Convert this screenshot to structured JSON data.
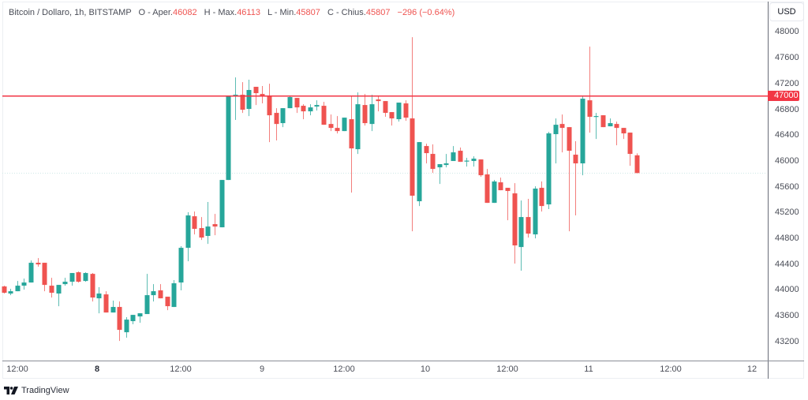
{
  "legend": {
    "symbol": "Bitcoin / Dollaro, 1h, BITSTAMP",
    "open_label": "O - Aper.",
    "open": "46082",
    "high_label": "H - Max.",
    "high": "46113",
    "low_label": "L - Min.",
    "low": "45807",
    "close_label": "C - Chius.",
    "close": "45807",
    "change": "−296 (−0.64%)"
  },
  "price_axis": {
    "currency_button": "USD",
    "ticks": [
      "48000",
      "47600",
      "47200",
      "46800",
      "46400",
      "46000",
      "45600",
      "45200",
      "44800",
      "44400",
      "44000",
      "43600",
      "43200"
    ],
    "marker_label": "47000"
  },
  "time_axis": {
    "ticks": [
      "12:00",
      "8",
      "12:00",
      "9",
      "12:00",
      "10",
      "12:00",
      "11",
      "12:00",
      "12"
    ]
  },
  "branding": {
    "name": "TradingView"
  },
  "colors": {
    "up": "#26a69a",
    "down": "#ef5350",
    "level_line": "#f23645",
    "last_price_line": "#cfe9e6"
  },
  "chart_data": {
    "type": "candlestick",
    "title": "Bitcoin / Dollaro, 1h, BITSTAMP",
    "xlabel": "",
    "ylabel": "USD",
    "interval": "1h",
    "x_tick_labels": [
      "12:00",
      "8",
      "12:00",
      "9",
      "12:00",
      "10",
      "12:00",
      "11",
      "12:00",
      "12"
    ],
    "y_ticks": [
      48000,
      47600,
      47200,
      46800,
      46400,
      46000,
      45600,
      45200,
      44800,
      44400,
      44000,
      43600,
      43200
    ],
    "ylim": [
      42900,
      48490
    ],
    "grid": false,
    "horizontal_line": {
      "price": 47000,
      "label": "47000"
    },
    "last_price": 45807,
    "fields": [
      "open",
      "high",
      "low",
      "close"
    ],
    "candles": [
      [
        44049,
        44061,
        43939,
        43951
      ],
      [
        43939,
        44012,
        43914,
        43975
      ],
      [
        43975,
        44134,
        43975,
        44061
      ],
      [
        44061,
        44171,
        44000,
        44110
      ],
      [
        44110,
        44452,
        44110,
        44416
      ],
      [
        44416,
        44489,
        44355,
        44391
      ],
      [
        44416,
        44416,
        43975,
        44073
      ],
      [
        44061,
        44183,
        43877,
        43951
      ],
      [
        43939,
        44073,
        43743,
        44073
      ],
      [
        44085,
        44183,
        44061,
        44122
      ],
      [
        44122,
        44257,
        44061,
        44257
      ],
      [
        44269,
        44281,
        44110,
        44122
      ],
      [
        44134,
        44269,
        44122,
        44257
      ],
      [
        44244,
        44257,
        43816,
        43877
      ],
      [
        43865,
        44037,
        43633,
        43939
      ],
      [
        43926,
        43975,
        43645,
        43645
      ],
      [
        43645,
        43829,
        43645,
        43731
      ],
      [
        43731,
        43816,
        43205,
        43376
      ],
      [
        43339,
        43572,
        43254,
        43535
      ],
      [
        43511,
        43608,
        43462,
        43608
      ],
      [
        43584,
        43633,
        43486,
        43633
      ],
      [
        43621,
        44244,
        43621,
        43914
      ],
      [
        43914,
        44085,
        43816,
        43975
      ],
      [
        43988,
        44085,
        43865,
        43865
      ],
      [
        43890,
        43890,
        43682,
        43743
      ],
      [
        43731,
        44147,
        43731,
        44098
      ],
      [
        44110,
        44673,
        43988,
        44648
      ],
      [
        44648,
        45199,
        44440,
        45150
      ],
      [
        45137,
        45211,
        44856,
        44942
      ],
      [
        44954,
        45125,
        44770,
        44807
      ],
      [
        44832,
        45358,
        44709,
        44978
      ],
      [
        45015,
        45174,
        44844,
        44978
      ],
      [
        44966,
        45700,
        44966,
        45700
      ],
      [
        45700,
        47009,
        45700,
        47009
      ],
      [
        47009,
        47290,
        46630,
        47021
      ],
      [
        47021,
        47217,
        46740,
        46789
      ],
      [
        46801,
        47254,
        46691,
        47095
      ],
      [
        47144,
        47144,
        46862,
        47046
      ],
      [
        47033,
        47156,
        46887,
        46997
      ],
      [
        46997,
        47192,
        46287,
        46703
      ],
      [
        46740,
        46813,
        46312,
        46568
      ],
      [
        46581,
        46813,
        46519,
        46813
      ],
      [
        46813,
        46997,
        46813,
        46985
      ],
      [
        46972,
        46972,
        46740,
        46825
      ],
      [
        46850,
        46874,
        46642,
        46764
      ],
      [
        46764,
        46874,
        46703,
        46825
      ],
      [
        46838,
        46935,
        46776,
        46862
      ],
      [
        46850,
        46911,
        46556,
        46556
      ],
      [
        46568,
        46715,
        46458,
        46507
      ],
      [
        46507,
        46691,
        46422,
        46458
      ],
      [
        46458,
        46666,
        46458,
        46666
      ],
      [
        46642,
        47009,
        45504,
        46189
      ],
      [
        46177,
        47058,
        46104,
        46874
      ],
      [
        46862,
        47033,
        46544,
        46581
      ],
      [
        46568,
        47021,
        46458,
        46874
      ],
      [
        46948,
        47009,
        46764,
        46923
      ],
      [
        46923,
        46923,
        46679,
        46740
      ],
      [
        46752,
        46752,
        46544,
        46654
      ],
      [
        46642,
        46899,
        46605,
        46899
      ],
      [
        46887,
        46935,
        46617,
        46666
      ],
      [
        46654,
        47914,
        44905,
        45456
      ],
      [
        45370,
        46287,
        45296,
        46287
      ],
      [
        46226,
        46263,
        45957,
        46116
      ],
      [
        46104,
        46251,
        45810,
        45871
      ],
      [
        45896,
        45945,
        45639,
        45945
      ],
      [
        45932,
        46104,
        45896,
        45957
      ],
      [
        45994,
        46226,
        45994,
        46128
      ],
      [
        46153,
        46202,
        45981,
        45981
      ],
      [
        45994,
        46043,
        45908,
        46000
      ],
      [
        45994,
        46067,
        45908,
        46030
      ],
      [
        46018,
        46018,
        45749,
        45773
      ],
      [
        45786,
        45871,
        45345,
        45345
      ],
      [
        45345,
        45700,
        45345,
        45676
      ],
      [
        45663,
        45737,
        45541,
        45541
      ],
      [
        45578,
        45578,
        45076,
        45529
      ],
      [
        45492,
        45651,
        44403,
        44685
      ],
      [
        44660,
        45382,
        44293,
        45125
      ],
      [
        45125,
        45407,
        44807,
        44868
      ],
      [
        44856,
        45602,
        44795,
        45566
      ],
      [
        45578,
        45676,
        45211,
        45296
      ],
      [
        45321,
        46446,
        45248,
        46422
      ],
      [
        46410,
        46654,
        45957,
        46556
      ],
      [
        46568,
        46715,
        46128,
        46507
      ],
      [
        46519,
        46519,
        44905,
        46153
      ],
      [
        46092,
        46300,
        45150,
        45957
      ],
      [
        45957,
        46997,
        45773,
        46960
      ],
      [
        46935,
        47767,
        46434,
        46679
      ],
      [
        46685,
        46740,
        46336,
        46691
      ],
      [
        46703,
        46703,
        46519,
        46519
      ],
      [
        46532,
        46654,
        46532,
        46581
      ],
      [
        46568,
        46605,
        46238,
        46507
      ],
      [
        46507,
        46507,
        46336,
        46422
      ],
      [
        46434,
        46434,
        45920,
        46104
      ],
      [
        46082,
        46113,
        45807,
        45807
      ]
    ]
  }
}
